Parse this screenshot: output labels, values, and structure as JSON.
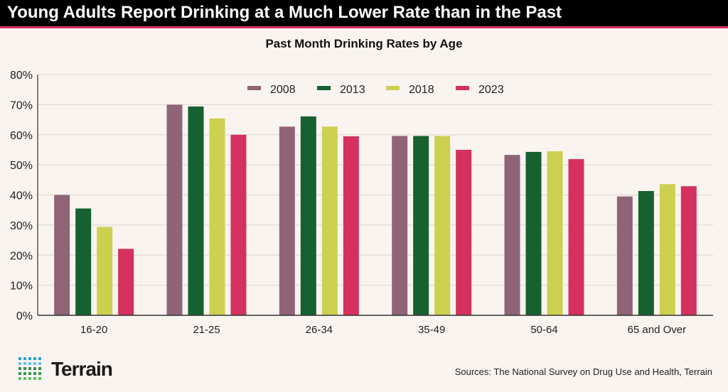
{
  "header": {
    "title": "Young Adults Report Drinking at a Much Lower Rate than in the Past"
  },
  "footer": {
    "logo": "Terrain",
    "source": "Sources: The National Survey on Drug Use and Health, Terrain"
  },
  "chart_data": {
    "type": "bar",
    "title": "Past Month Drinking Rates by Age",
    "xlabel": "",
    "ylabel": "",
    "ylim": [
      0,
      80
    ],
    "yticks": [
      "0%",
      "10%",
      "20%",
      "30%",
      "40%",
      "50%",
      "60%",
      "70%",
      "80%"
    ],
    "grid": true,
    "legend": "top-center",
    "categories": [
      "16-20",
      "21-25",
      "26-34",
      "35-49",
      "50-64",
      "65 and Over"
    ],
    "series": [
      {
        "name": "2008",
        "color": "#8f6477",
        "values": [
          40,
          70,
          62.7,
          59.6,
          53.3,
          39.5
        ]
      },
      {
        "name": "2013",
        "color": "#176030",
        "values": [
          35.5,
          69.4,
          66.1,
          59.6,
          54.3,
          41.3
        ]
      },
      {
        "name": "2018",
        "color": "#cdcf51",
        "values": [
          29.4,
          65.4,
          62.7,
          59.6,
          54.5,
          43.6
        ]
      },
      {
        "name": "2023",
        "color": "#d4315f",
        "values": [
          22.1,
          60,
          59.5,
          55,
          51.9,
          42.9
        ]
      }
    ]
  }
}
